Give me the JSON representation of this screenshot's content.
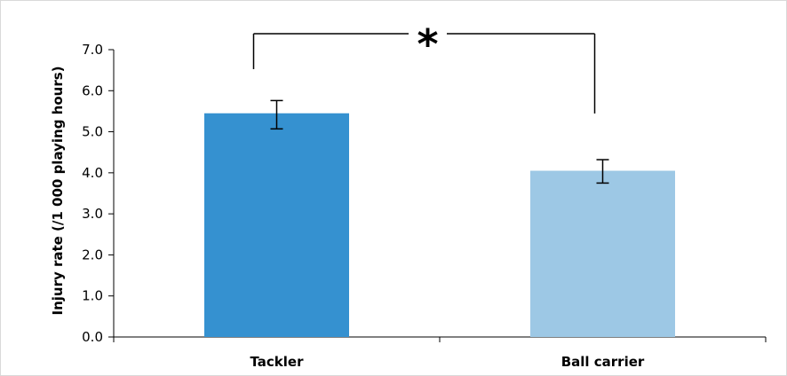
{
  "chart_data": {
    "type": "bar",
    "title": "",
    "xlabel": "",
    "ylabel": "Injury rate (/1 000 playing hours)",
    "ylim": [
      0,
      7
    ],
    "yticks": [
      "0.0",
      "1.0",
      "2.0",
      "3.0",
      "4.0",
      "5.0",
      "6.0",
      "7.0"
    ],
    "categories": [
      "Tackler",
      "Ball carrier"
    ],
    "values": [
      5.45,
      4.05
    ],
    "error_low": [
      5.07,
      3.75
    ],
    "error_high": [
      5.76,
      4.32
    ],
    "colors": [
      "#3591d0",
      "#9dc8e5"
    ],
    "significance": {
      "label": "*",
      "between": [
        "Tackler",
        "Ball carrier"
      ]
    },
    "grid": false,
    "legend": "none"
  }
}
